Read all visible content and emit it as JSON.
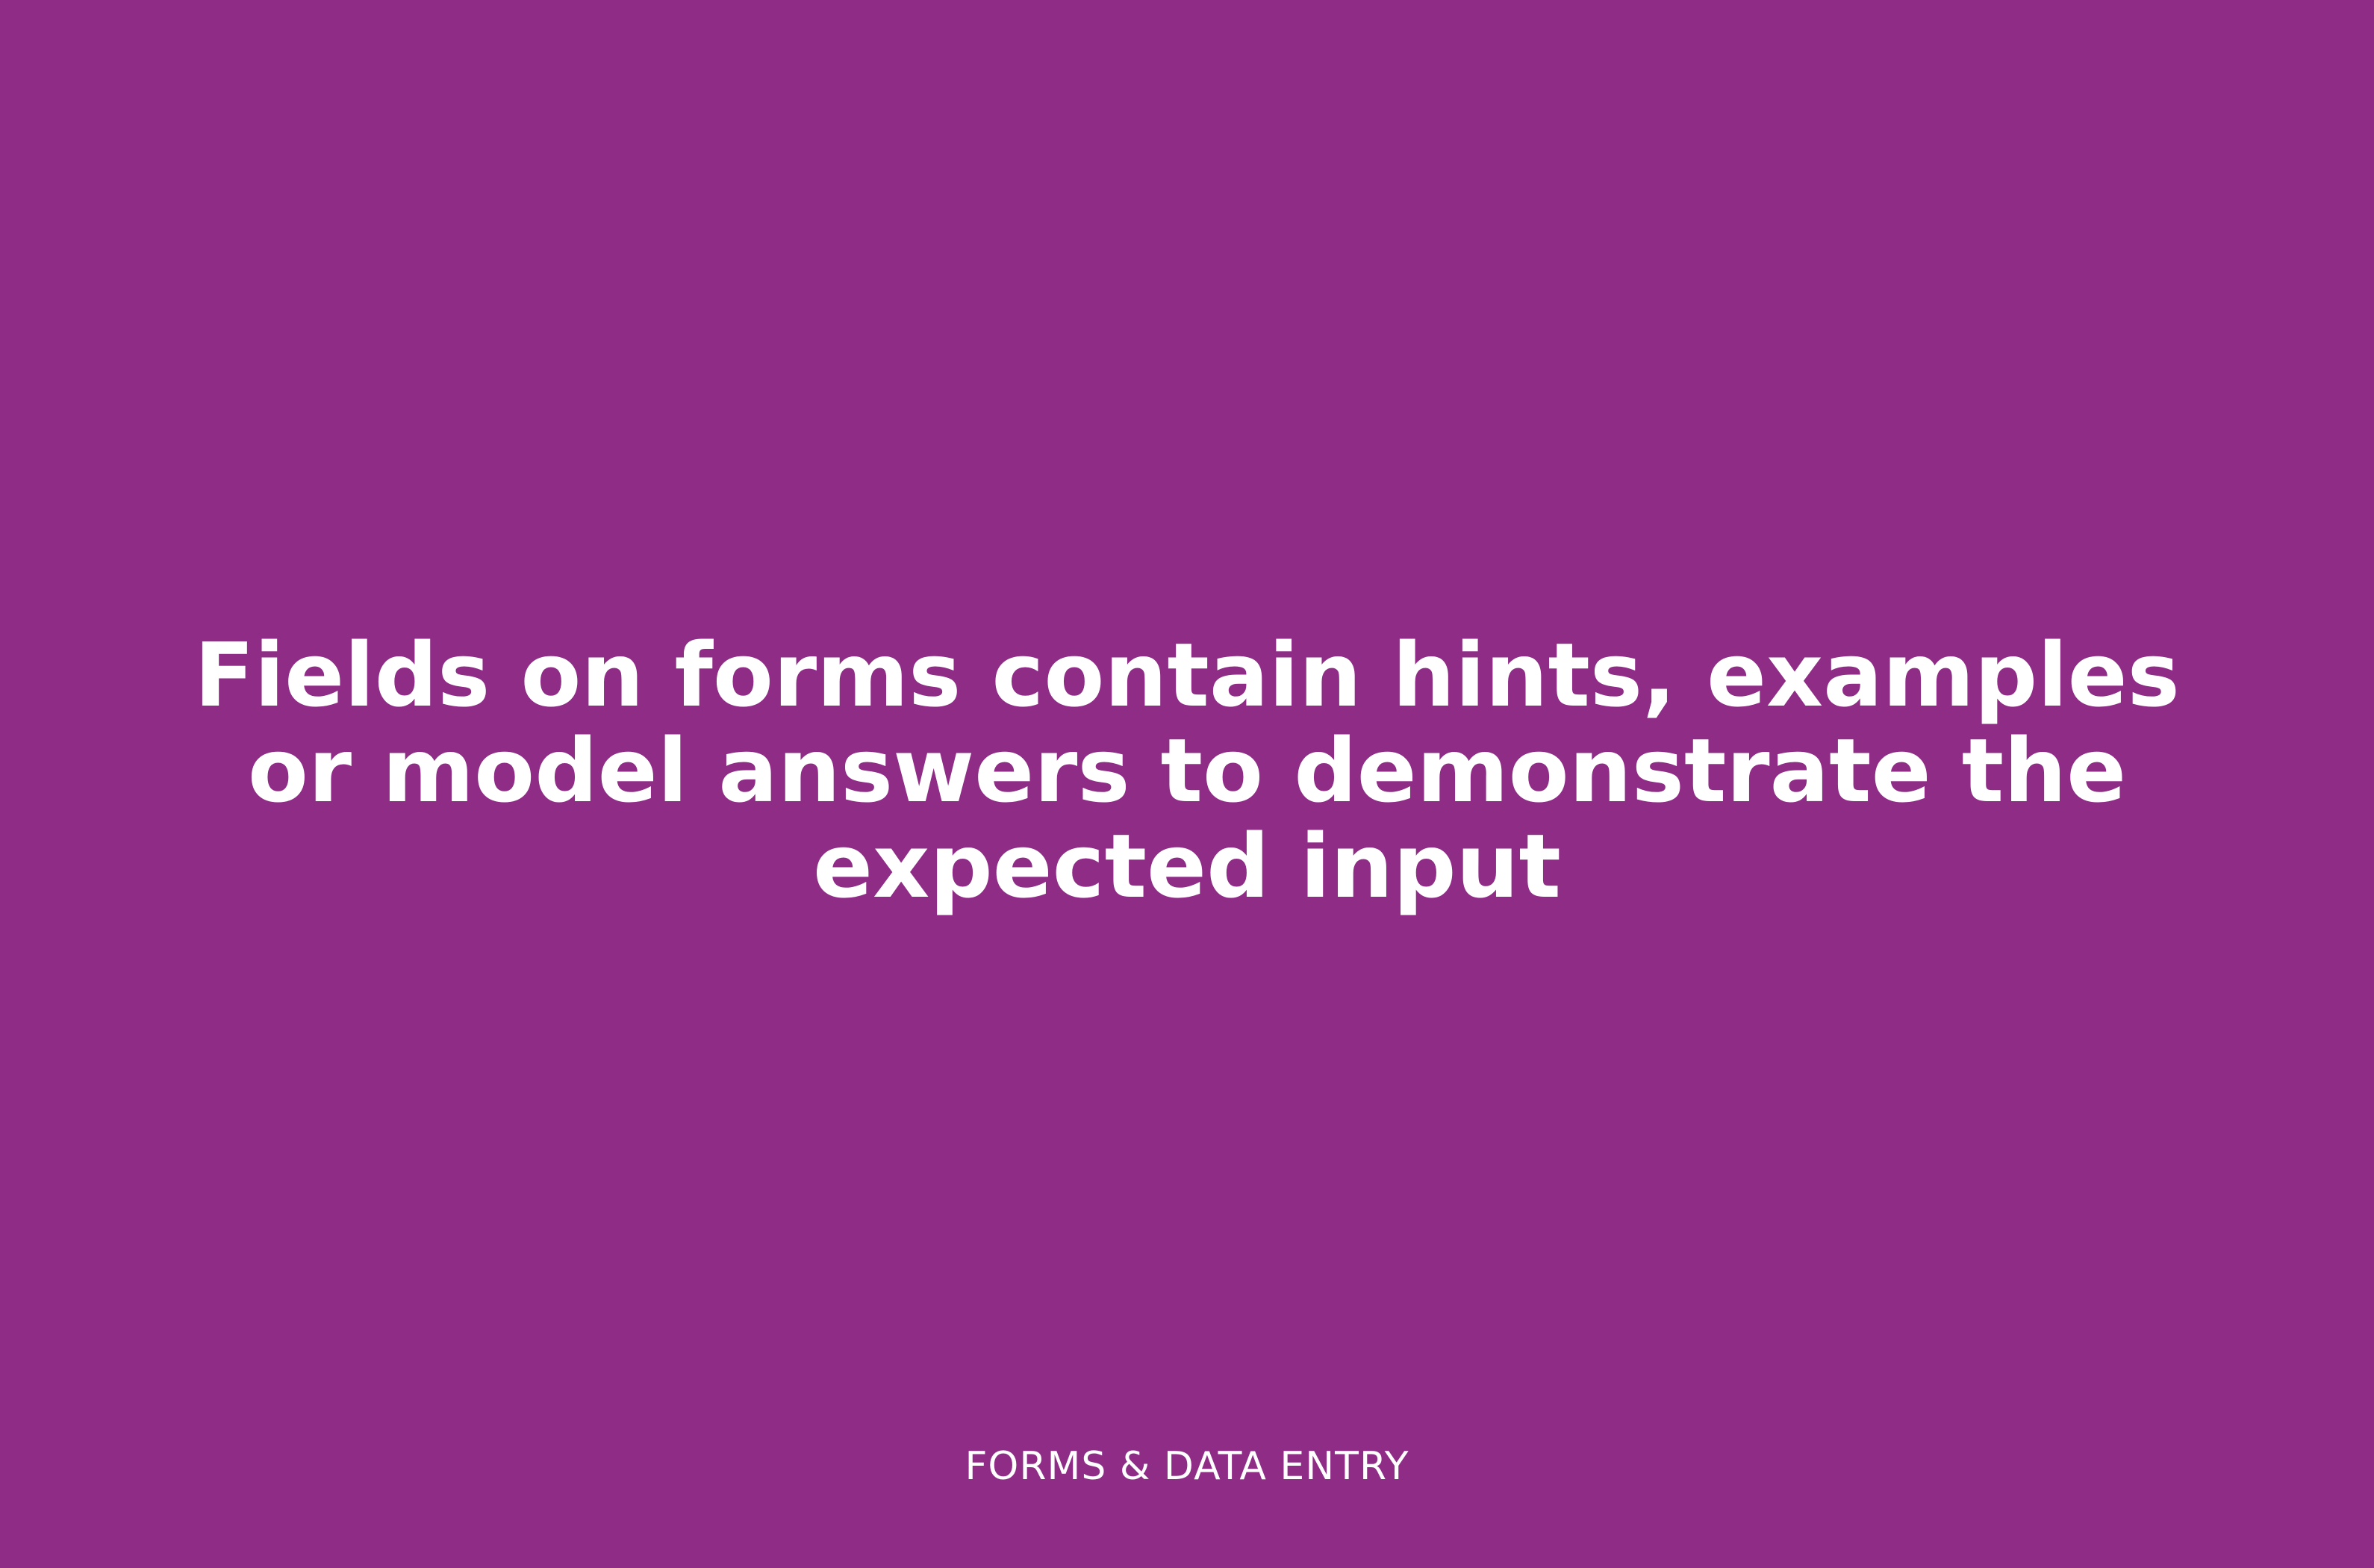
{
  "card": {
    "headline": "Fields on forms contain hints, examples or model answers to demonstrate the expected input",
    "category": "FORMS & DATA ENTRY",
    "background_color": "#8e2c86",
    "text_color": "#ffffff"
  }
}
